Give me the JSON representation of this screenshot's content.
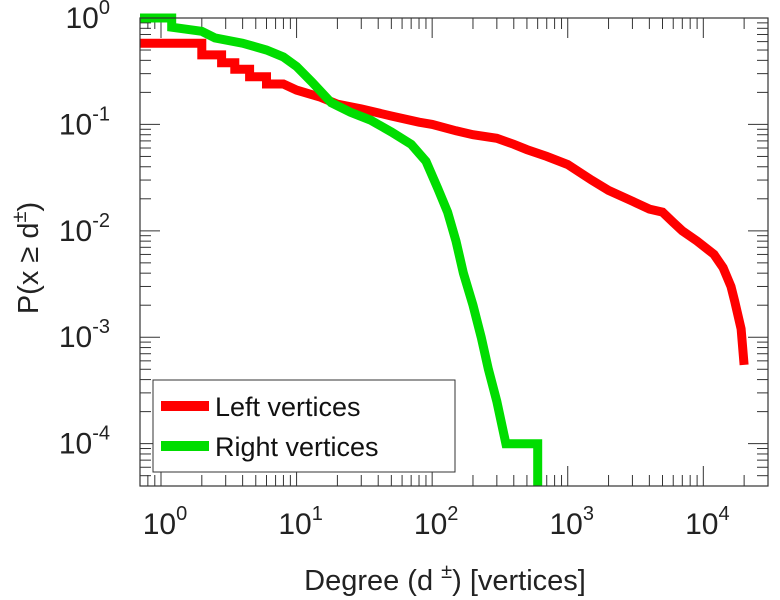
{
  "chart_data": {
    "type": "line",
    "xscale": "log",
    "yscale": "log",
    "xlabel": "Degree (d ±) [vertices]",
    "ylabel": "P(x ≥ d±)",
    "xlim": [
      0.7,
      30000
    ],
    "ylim": [
      4e-05,
      1.0
    ],
    "grid": false,
    "legend_position": "bottom-left",
    "x_ticks": [
      {
        "value": 1,
        "base": "10",
        "exp": "0"
      },
      {
        "value": 10,
        "base": "10",
        "exp": "1"
      },
      {
        "value": 100,
        "base": "10",
        "exp": "2"
      },
      {
        "value": 1000,
        "base": "10",
        "exp": "3"
      },
      {
        "value": 10000,
        "base": "10",
        "exp": "4"
      }
    ],
    "y_ticks": [
      {
        "value": 1,
        "base": "10",
        "exp": "0"
      },
      {
        "value": 0.1,
        "base": "10",
        "exp": "-1"
      },
      {
        "value": 0.01,
        "base": "10",
        "exp": "-2"
      },
      {
        "value": 0.001,
        "base": "10",
        "exp": "-3"
      },
      {
        "value": 0.0001,
        "base": "10",
        "exp": "-4"
      }
    ],
    "series": [
      {
        "name": "Left vertices",
        "color": "#ff0000",
        "points": [
          [
            0.7,
            0.58
          ],
          [
            2.0,
            0.58
          ],
          [
            2.0,
            0.45
          ],
          [
            2.8,
            0.45
          ],
          [
            2.8,
            0.38
          ],
          [
            3.5,
            0.38
          ],
          [
            3.5,
            0.33
          ],
          [
            4.5,
            0.33
          ],
          [
            4.5,
            0.28
          ],
          [
            6.0,
            0.28
          ],
          [
            6.0,
            0.24
          ],
          [
            8.0,
            0.24
          ],
          [
            10,
            0.21
          ],
          [
            15,
            0.18
          ],
          [
            20,
            0.155
          ],
          [
            30,
            0.14
          ],
          [
            50,
            0.12
          ],
          [
            80,
            0.105
          ],
          [
            100,
            0.1
          ],
          [
            150,
            0.087
          ],
          [
            200,
            0.08
          ],
          [
            300,
            0.074
          ],
          [
            400,
            0.065
          ],
          [
            500,
            0.058
          ],
          [
            700,
            0.05
          ],
          [
            1000,
            0.042
          ],
          [
            1500,
            0.03
          ],
          [
            2000,
            0.024
          ],
          [
            3000,
            0.019
          ],
          [
            4000,
            0.016
          ],
          [
            5000,
            0.015
          ],
          [
            6000,
            0.012
          ],
          [
            7000,
            0.01
          ],
          [
            9000,
            0.008
          ],
          [
            12000,
            0.006
          ],
          [
            14000,
            0.0045
          ],
          [
            16000,
            0.003
          ],
          [
            17000,
            0.0022
          ],
          [
            19000,
            0.0012
          ],
          [
            20000,
            0.00055
          ]
        ]
      },
      {
        "name": "Right vertices",
        "color": "#00dd00",
        "points": [
          [
            0.7,
            1.0
          ],
          [
            1.2,
            1.0
          ],
          [
            1.2,
            0.82
          ],
          [
            2.0,
            0.75
          ],
          [
            2.5,
            0.65
          ],
          [
            4.0,
            0.58
          ],
          [
            6.0,
            0.5
          ],
          [
            8.0,
            0.43
          ],
          [
            10,
            0.35
          ],
          [
            13,
            0.25
          ],
          [
            18,
            0.16
          ],
          [
            25,
            0.13
          ],
          [
            35,
            0.11
          ],
          [
            50,
            0.085
          ],
          [
            70,
            0.065
          ],
          [
            90,
            0.045
          ],
          [
            110,
            0.025
          ],
          [
            130,
            0.015
          ],
          [
            150,
            0.008
          ],
          [
            170,
            0.004
          ],
          [
            200,
            0.002
          ],
          [
            230,
            0.001
          ],
          [
            260,
            0.0005
          ],
          [
            300,
            0.00025
          ],
          [
            350,
            0.0001
          ],
          [
            600,
            0.0001
          ],
          [
            600,
            4e-05
          ]
        ]
      }
    ]
  }
}
